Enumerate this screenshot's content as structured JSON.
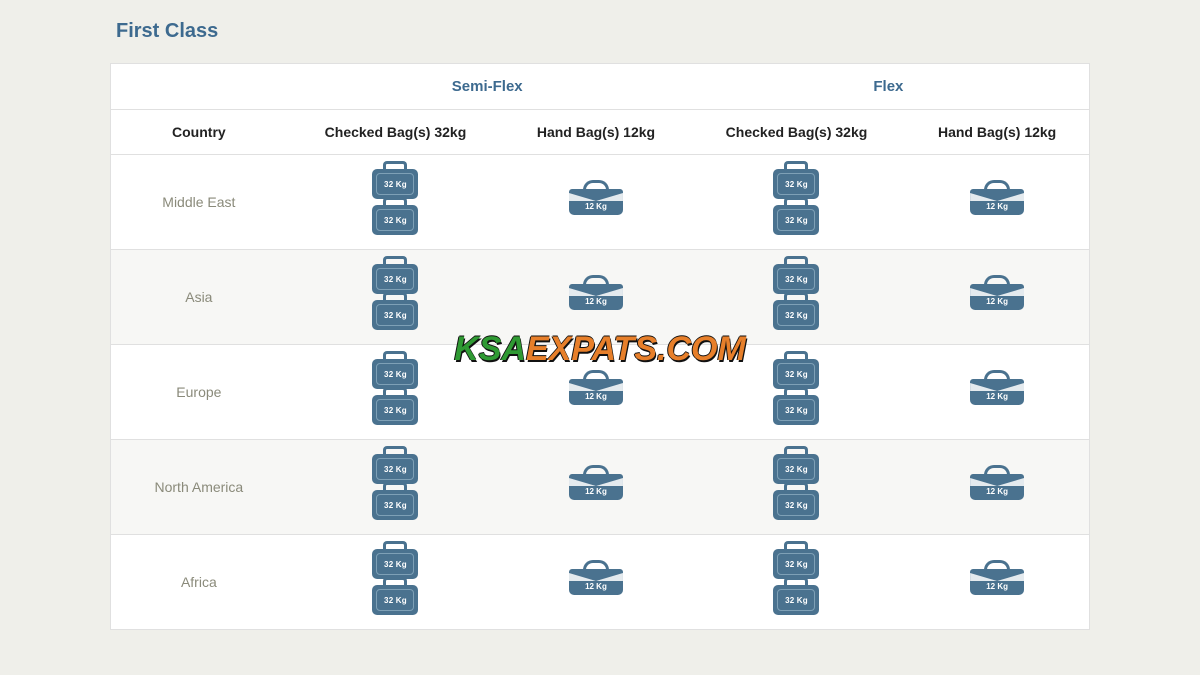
{
  "title": "First Class",
  "fare_groups": [
    "Semi-Flex",
    "Flex"
  ],
  "columns": {
    "country": "Country",
    "checked": "Checked Bag(s) 32kg",
    "hand": "Hand Bag(s) 12kg"
  },
  "icon_style": {
    "bag_color": "#4a728f",
    "bag_text_color": "#ffffff",
    "checked_label": "32 Kg",
    "hand_label": "12 Kg"
  },
  "rows": [
    {
      "country": "Middle East",
      "semi_flex": {
        "checked_count": 2,
        "hand_count": 1
      },
      "flex": {
        "checked_count": 2,
        "hand_count": 1
      }
    },
    {
      "country": "Asia",
      "semi_flex": {
        "checked_count": 2,
        "hand_count": 1
      },
      "flex": {
        "checked_count": 2,
        "hand_count": 1
      }
    },
    {
      "country": "Europe",
      "semi_flex": {
        "checked_count": 2,
        "hand_count": 1
      },
      "flex": {
        "checked_count": 2,
        "hand_count": 1
      }
    },
    {
      "country": "North America",
      "semi_flex": {
        "checked_count": 2,
        "hand_count": 1
      },
      "flex": {
        "checked_count": 2,
        "hand_count": 1
      }
    },
    {
      "country": "Africa",
      "semi_flex": {
        "checked_count": 2,
        "hand_count": 1
      },
      "flex": {
        "checked_count": 2,
        "hand_count": 1
      }
    }
  ],
  "watermark": {
    "part1": "KSA",
    "part2": "EXPATS.COM"
  },
  "colors": {
    "page_bg": "#efefea",
    "table_bg": "#ffffff",
    "row_alt_bg": "#f7f7f5",
    "border": "#e0e0e0",
    "title": "#3d6a8f",
    "country_text": "#8a8a7a",
    "watermark_green": "#2f9a33",
    "watermark_orange": "#e77f2a"
  }
}
